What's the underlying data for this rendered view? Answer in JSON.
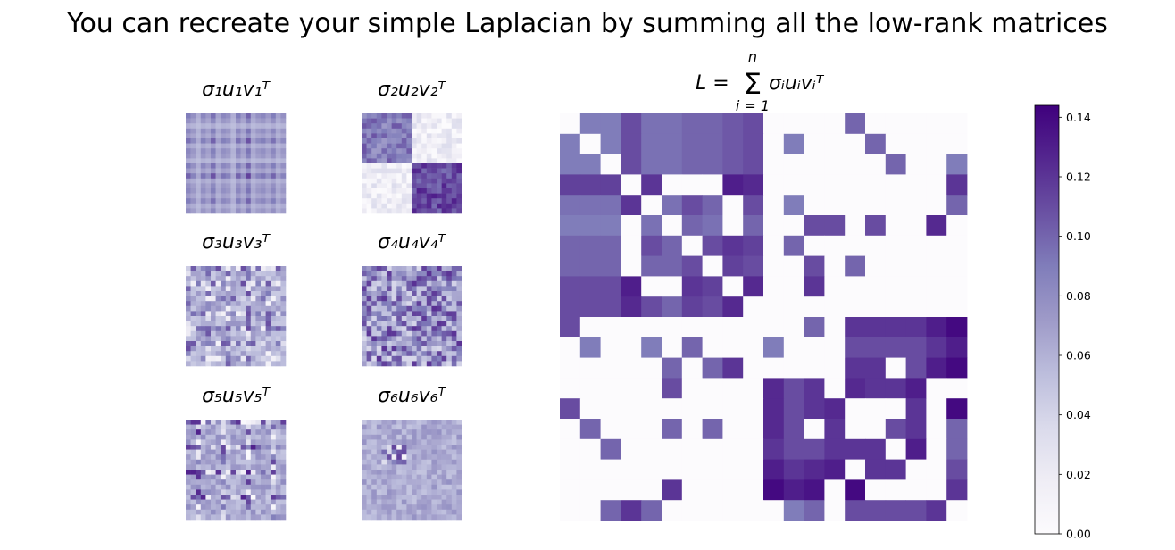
{
  "title": "You can recreate your simple Laplacian by summing all the low-rank matrices",
  "panels": [
    {
      "label": "σ₁u₁v₁ᵀ",
      "sub": "1"
    },
    {
      "label": "σ₂u₂v₂ᵀ",
      "sub": "2"
    },
    {
      "label": "σ₃u₃v₃ᵀ",
      "sub": "3"
    },
    {
      "label": "σ₄u₄v₄ᵀ",
      "sub": "4"
    },
    {
      "label": "σ₅u₅v₅ᵀ",
      "sub": "5"
    },
    {
      "label": "σ₆u₆v₆ᵀ",
      "sub": "6"
    }
  ],
  "main_title": "L = Σ σᵢuᵢvᵢᵀ, i = 1..n",
  "main_title_parts": {
    "lhs": "L =",
    "sum_top": "n",
    "sum_bottom": "i = 1",
    "rhs": "σᵢuᵢvᵢᵀ"
  },
  "chart_data": [
    {
      "type": "heatmap",
      "title": "L = Σ σᵢuᵢvᵢᵀ (i = 1..n)",
      "size": [
        20,
        20
      ],
      "colormap": "Purples",
      "colorbar": {
        "min": 0.0,
        "max": 0.144,
        "ticks": [
          0.0,
          0.02,
          0.04,
          0.06,
          0.08,
          0.1,
          0.12,
          0.14
        ],
        "tick_labels": [
          "0.00",
          "0.02",
          "0.04",
          "0.06",
          "0.08",
          "0.10",
          "0.12",
          "0.14"
        ]
      },
      "values": [
        [
          0,
          0.09,
          0.09,
          0.11,
          0.095,
          0.095,
          0.1,
          0.1,
          0.105,
          0.11,
          0,
          0,
          0,
          0,
          0.1,
          0,
          0,
          0,
          0,
          0
        ],
        [
          0.09,
          0,
          0.09,
          0.11,
          0.095,
          0.095,
          0.1,
          0.1,
          0.105,
          0.11,
          0,
          0.09,
          0,
          0,
          0,
          0.1,
          0,
          0,
          0,
          0
        ],
        [
          0.09,
          0.09,
          0,
          0.11,
          0.095,
          0.095,
          0.1,
          0.1,
          0.105,
          0.11,
          0,
          0,
          0,
          0,
          0,
          0,
          0.1,
          0,
          0,
          0.09
        ],
        [
          0.115,
          0.115,
          0.115,
          0,
          0.12,
          0,
          0,
          0,
          0.13,
          0.125,
          0,
          0,
          0,
          0,
          0,
          0,
          0,
          0,
          0,
          0.12
        ],
        [
          0.095,
          0.095,
          0.095,
          0.12,
          0,
          0.095,
          0.11,
          0.1,
          0,
          0.11,
          0,
          0.09,
          0,
          0,
          0,
          0,
          0,
          0,
          0,
          0.1
        ],
        [
          0.09,
          0.09,
          0.09,
          0,
          0.095,
          0,
          0.1,
          0.095,
          0,
          0.1,
          0,
          0,
          0.11,
          0.11,
          0,
          0.11,
          0,
          0,
          0.125,
          0
        ],
        [
          0.1,
          0.1,
          0.1,
          0,
          0.11,
          0.1,
          0,
          0.11,
          0.12,
          0.115,
          0,
          0.1,
          0,
          0,
          0,
          0,
          0,
          0,
          0,
          0
        ],
        [
          0.1,
          0.1,
          0.1,
          0,
          0.1,
          0.1,
          0.11,
          0,
          0.115,
          0.11,
          0,
          0,
          0.11,
          0,
          0.1,
          0,
          0,
          0,
          0,
          0
        ],
        [
          0.11,
          0.11,
          0.11,
          0.13,
          0,
          0,
          0.12,
          0.115,
          0,
          0.125,
          0,
          0,
          0.12,
          0,
          0,
          0,
          0,
          0,
          0,
          0
        ],
        [
          0.11,
          0.11,
          0.11,
          0.125,
          0.11,
          0.1,
          0.115,
          0.11,
          0.125,
          0,
          0,
          0,
          0,
          0,
          0,
          0,
          0,
          0,
          0,
          0
        ],
        [
          0.11,
          0,
          0,
          0,
          0,
          0,
          0,
          0,
          0,
          0,
          0,
          0,
          0.1,
          0,
          0.12,
          0.12,
          0.12,
          0.12,
          0.13,
          0.14
        ],
        [
          0,
          0.09,
          0,
          0,
          0.09,
          0,
          0.1,
          0,
          0,
          0,
          0.09,
          0,
          0,
          0,
          0.11,
          0.11,
          0.11,
          0.11,
          0.12,
          0.13
        ],
        [
          0,
          0,
          0,
          0,
          0,
          0.1,
          0,
          0.1,
          0.12,
          0,
          0,
          0,
          0,
          0,
          0.12,
          0.12,
          0,
          0.11,
          0.13,
          0.14
        ],
        [
          0,
          0,
          0,
          0,
          0,
          0.11,
          0,
          0,
          0,
          0,
          0.125,
          0.11,
          0.12,
          0,
          0.125,
          0.12,
          0.12,
          0.13,
          0,
          0
        ],
        [
          0.11,
          0,
          0,
          0,
          0,
          0,
          0,
          0,
          0,
          0,
          0.125,
          0.11,
          0.12,
          0.125,
          0,
          0,
          0,
          0.12,
          0,
          0.14
        ],
        [
          0,
          0.1,
          0,
          0,
          0,
          0.1,
          0,
          0.1,
          0,
          0,
          0.125,
          0.11,
          0,
          0.12,
          0,
          0,
          0.11,
          0.12,
          0,
          0.1
        ],
        [
          0,
          0,
          0.1,
          0,
          0,
          0,
          0,
          0,
          0,
          0,
          0.12,
          0.11,
          0.11,
          0.12,
          0.12,
          0.12,
          0,
          0.13,
          0,
          0.1
        ],
        [
          0,
          0,
          0,
          0,
          0,
          0,
          0,
          0,
          0,
          0,
          0.13,
          0.12,
          0.125,
          0.13,
          0,
          0.12,
          0.12,
          0,
          0,
          0.11
        ],
        [
          0,
          0,
          0,
          0,
          0,
          0.12,
          0,
          0,
          0,
          0,
          0.14,
          0.13,
          0.135,
          0,
          0.14,
          0,
          0,
          0,
          0,
          0.12
        ],
        [
          0,
          0,
          0.1,
          0.12,
          0.1,
          0,
          0,
          0,
          0,
          0,
          0,
          0.09,
          0.1,
          0,
          0.11,
          0.11,
          0.11,
          0.11,
          0.12,
          0
        ]
      ]
    }
  ],
  "colors": {
    "cmap_low": "#fcfbfd",
    "cmap_high": "#3f007d"
  }
}
